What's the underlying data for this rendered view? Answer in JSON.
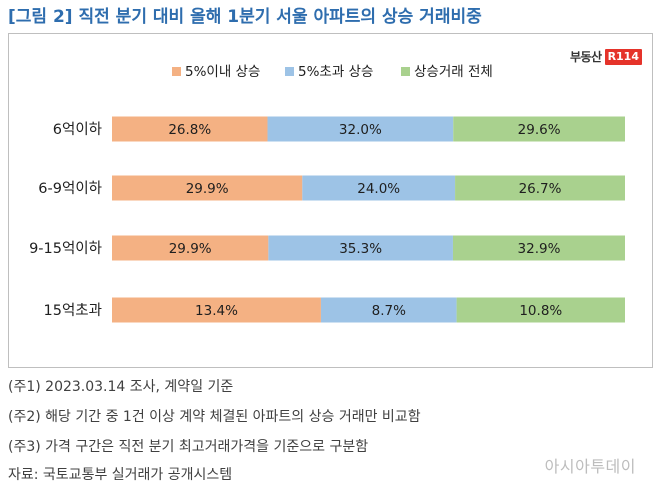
{
  "header": {
    "title": "[그림 2] 직전 분기 대비 올해 1분기 서울 아파트의 상승 거래비중"
  },
  "logo": {
    "text": "부동산",
    "mark": "R114"
  },
  "chart_data": {
    "type": "bar",
    "orientation": "horizontal",
    "stacked": true,
    "title": "",
    "xlabel": "",
    "ylabel": "",
    "categories": [
      "6억이하",
      "6-9억이하",
      "9-15억이하",
      "15억초과"
    ],
    "series": [
      {
        "name": "5%이내 상승",
        "values": [
          26.8,
          29.9,
          29.9,
          13.4
        ],
        "labels": [
          "26.8%",
          "29.9%",
          "29.9%",
          "13.4%"
        ],
        "color": "#f4b183"
      },
      {
        "name": "5%초과 상승",
        "values": [
          32.0,
          24.0,
          35.3,
          8.7
        ],
        "labels": [
          "32.0%",
          "24.0%",
          "35.3%",
          "8.7%"
        ],
        "color": "#9dc3e6"
      },
      {
        "name": "상승거래 전체",
        "values": [
          29.6,
          26.7,
          32.9,
          10.8
        ],
        "labels": [
          "29.6%",
          "26.7%",
          "32.9%",
          "10.8%"
        ],
        "color": "#a9d18e"
      }
    ],
    "legend_position": "top",
    "grid": false,
    "axis_visible": false
  },
  "notes": [
    "(주1) 2023.03.14 조사, 계약일 기준",
    "(주2) 해당 기간 중 1건 이상 계약 체결된 아파트의 상승 거래만 비교함",
    "(주3) 가격 구간은 직전 분기 최고거래가격을 기준으로 구분함"
  ],
  "source": "자료: 국토교통부 실거래가 공개시스템",
  "watermark": "아시아투데이"
}
